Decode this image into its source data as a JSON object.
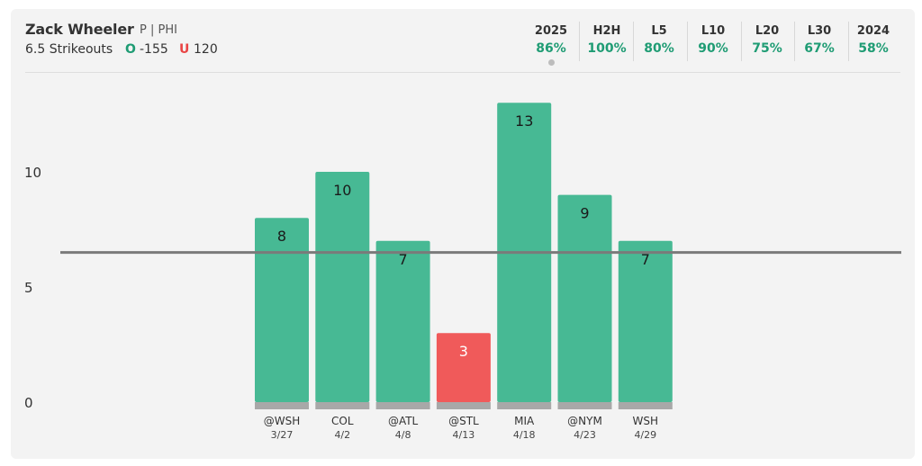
{
  "player": {
    "name": "Zack Wheeler",
    "meta": "P | PHI"
  },
  "prop": {
    "line_label": "6.5 Strikeouts",
    "over_icon": "O",
    "over_odds": "-155",
    "under_icon": "U",
    "under_odds": "120"
  },
  "stat_tabs": [
    {
      "label": "2025",
      "value": "86%",
      "active": true
    },
    {
      "label": "H2H",
      "value": "100%"
    },
    {
      "label": "L5",
      "value": "80%"
    },
    {
      "label": "L10",
      "value": "90%"
    },
    {
      "label": "L20",
      "value": "75%"
    },
    {
      "label": "L30",
      "value": "67%"
    },
    {
      "label": "2024",
      "value": "58%"
    }
  ],
  "colors": {
    "hit": "#47b994",
    "miss": "#f05a5a",
    "line": "#7a7a7a",
    "base": "#a8a8a8",
    "accent_green": "#1f9c74",
    "accent_red": "#e94545"
  },
  "chart_data": {
    "type": "bar",
    "categories": [
      "@WSH 3/27",
      "COL 4/2",
      "@ATL 4/8",
      "@STL 4/13",
      "MIA 4/18",
      "@NYM 4/23",
      "WSH 4/29"
    ],
    "opponents": [
      "@WSH",
      "COL",
      "@ATL",
      "@STL",
      "MIA",
      "@NYM",
      "WSH"
    ],
    "dates": [
      "3/27",
      "4/2",
      "4/8",
      "4/13",
      "4/18",
      "4/23",
      "4/29"
    ],
    "values": [
      8,
      10,
      7,
      3,
      13,
      9,
      7
    ],
    "threshold": 6.5,
    "yticks": [
      0,
      5,
      10
    ],
    "ylim": [
      0,
      13
    ],
    "grid": false
  }
}
